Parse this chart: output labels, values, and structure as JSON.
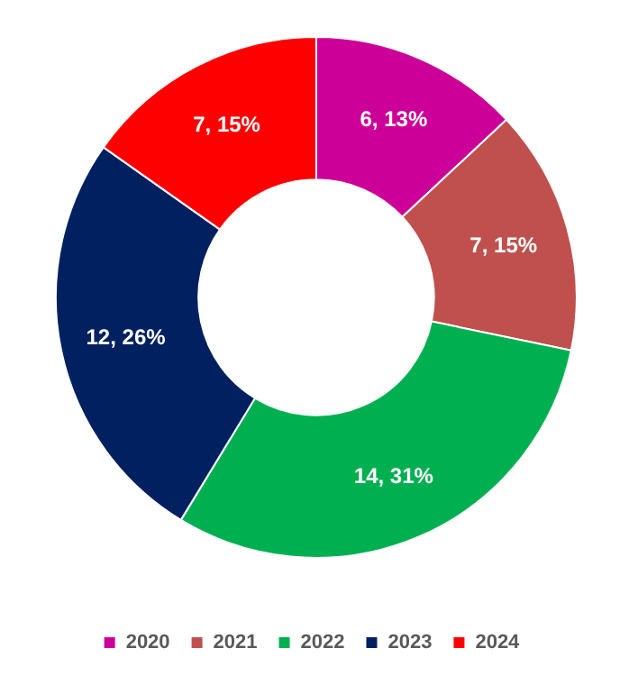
{
  "chart_data": {
    "type": "donut",
    "categories": [
      "2020",
      "2021",
      "2022",
      "2023",
      "2024"
    ],
    "values": [
      6,
      7,
      14,
      12,
      7
    ],
    "colors": [
      "#cc0099",
      "#c0504d",
      "#00b050",
      "#002060",
      "#ff0000"
    ],
    "value_labels": [
      "6, 13%",
      "7, 15%",
      "14, 31%",
      "12, 26%",
      "7, 15%"
    ],
    "legend": "bottom"
  }
}
